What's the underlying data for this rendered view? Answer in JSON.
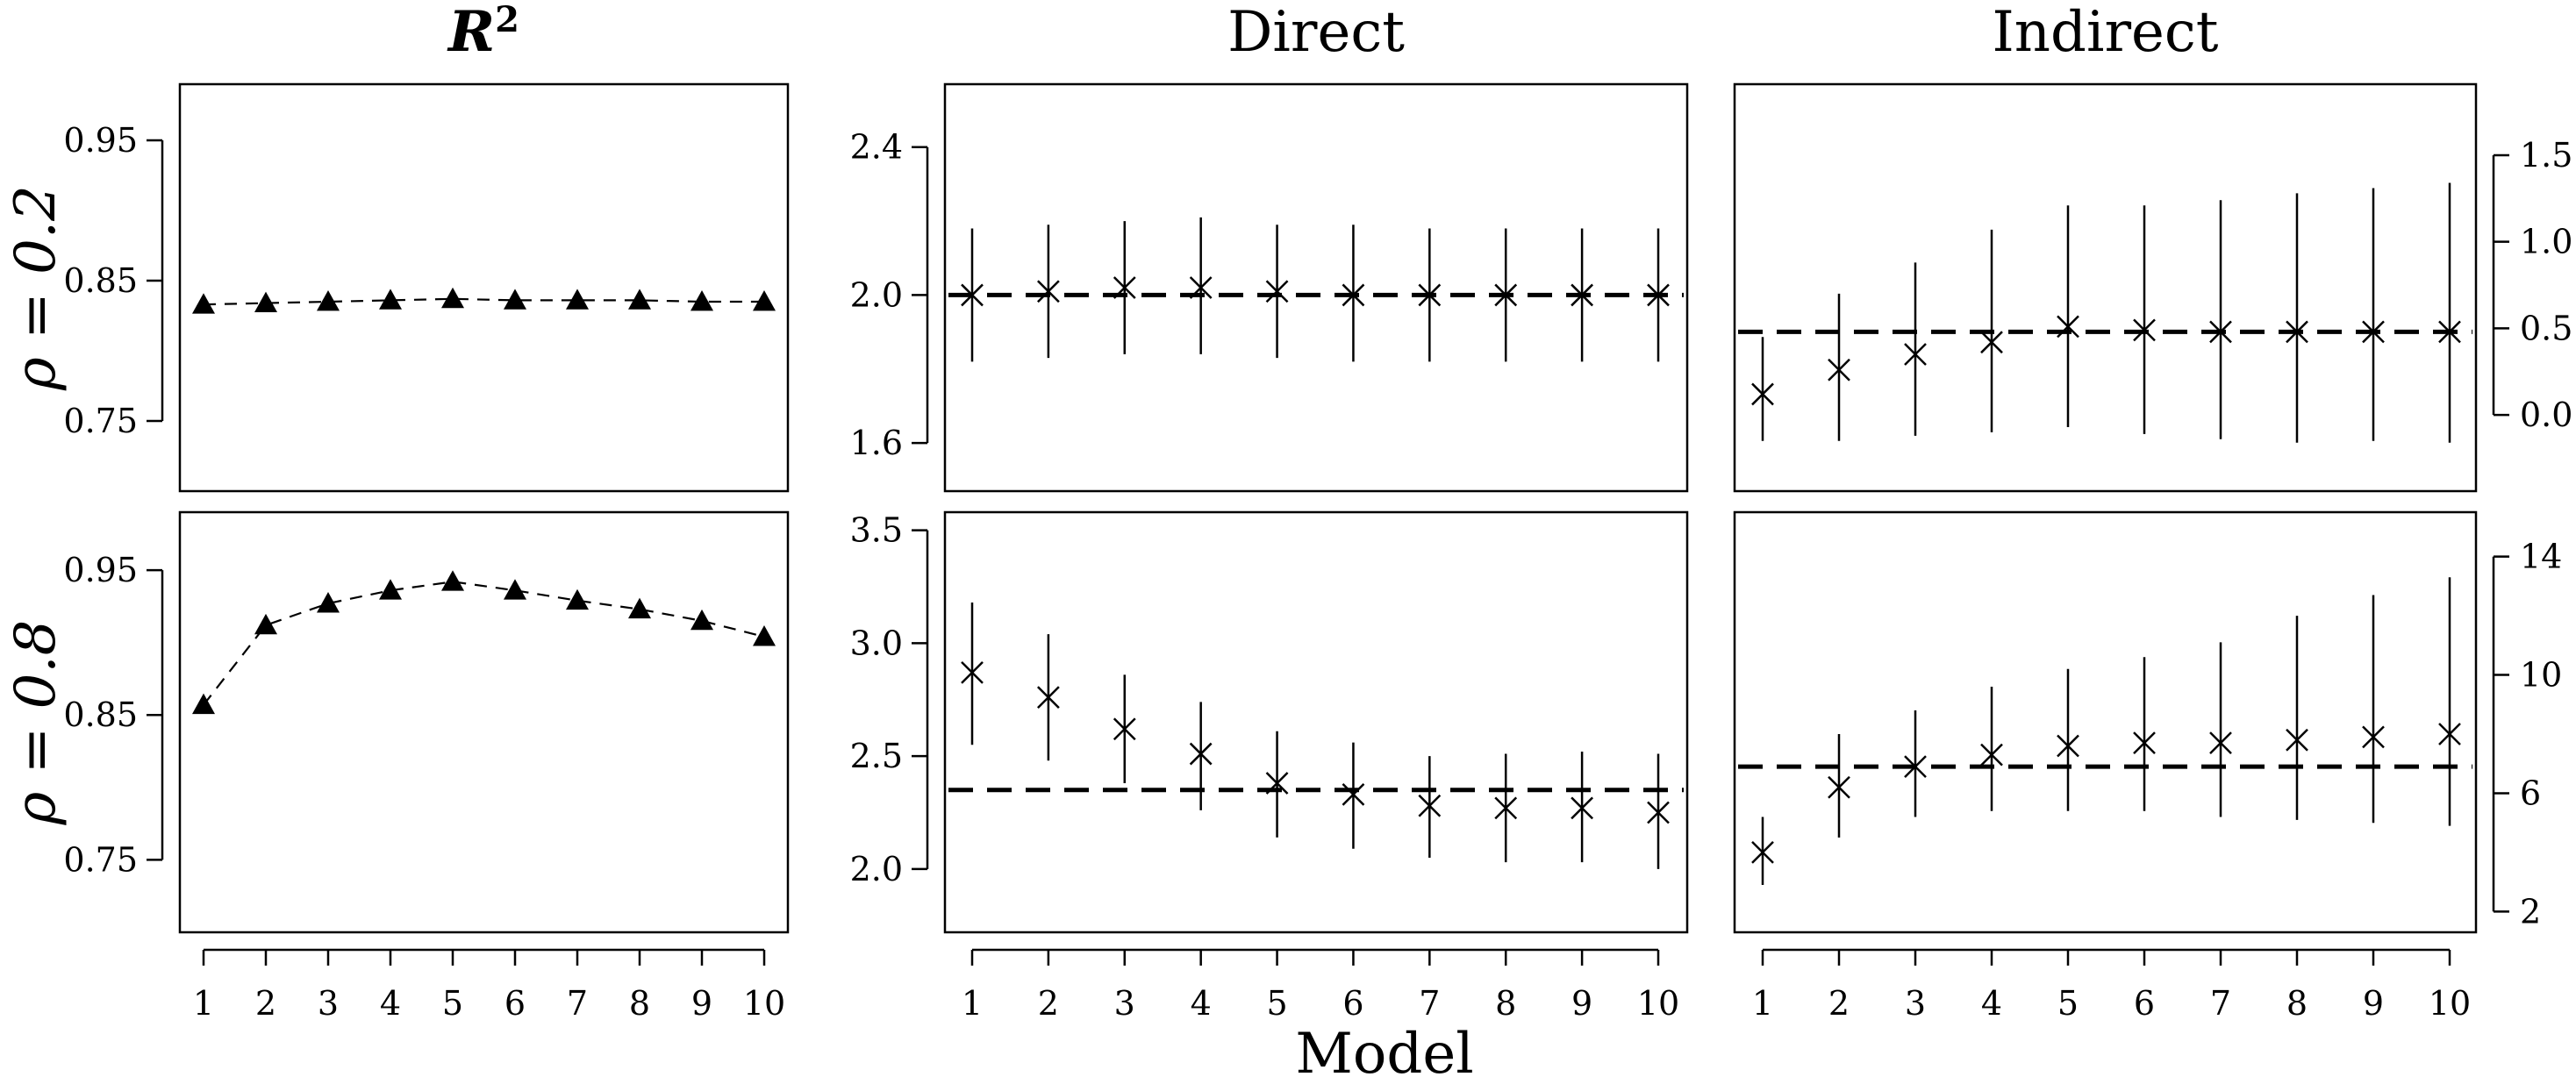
{
  "chart_data": {
    "type": "scatter",
    "x_title": "Model",
    "x_ticks": [
      "1",
      "2",
      "3",
      "4",
      "5",
      "6",
      "7",
      "8",
      "9",
      "10"
    ],
    "columns": [
      {
        "title": "R",
        "title_sup": "2"
      },
      {
        "title": "Direct"
      },
      {
        "title": "Indirect"
      }
    ],
    "rows": [
      {
        "label": "ρ = 0.2"
      },
      {
        "label": "ρ = 0.8"
      }
    ],
    "panels": [
      {
        "id": "r2-rho02",
        "row": 0,
        "col": 0,
        "kind": "r2",
        "ylim": [
          0.7,
          0.99
        ],
        "yticks": [
          0.75,
          0.85,
          0.95
        ],
        "ytick_labels": [
          "0.75",
          "0.85",
          "0.95"
        ],
        "y_axis_side": "left",
        "values": [
          0.833,
          0.834,
          0.835,
          0.836,
          0.837,
          0.836,
          0.836,
          0.836,
          0.835,
          0.835
        ]
      },
      {
        "id": "direct-rho02",
        "row": 0,
        "col": 1,
        "kind": "ci",
        "ylim": [
          1.47,
          2.57
        ],
        "yticks": [
          1.6,
          2.0,
          2.4
        ],
        "ytick_labels": [
          "1.6",
          "2.0",
          "2.4"
        ],
        "y_axis_side": "left",
        "reference": 2.0,
        "estimates": [
          2.0,
          2.01,
          2.02,
          2.02,
          2.01,
          2.0,
          2.0,
          2.0,
          2.0,
          2.0
        ],
        "lower": [
          1.82,
          1.83,
          1.84,
          1.84,
          1.83,
          1.82,
          1.82,
          1.82,
          1.82,
          1.82
        ],
        "upper": [
          2.18,
          2.19,
          2.2,
          2.21,
          2.19,
          2.19,
          2.18,
          2.18,
          2.18,
          2.18
        ]
      },
      {
        "id": "indirect-rho02",
        "row": 0,
        "col": 2,
        "kind": "ci",
        "ylim": [
          -0.44,
          1.91
        ],
        "yticks": [
          0.0,
          0.5,
          1.0,
          1.5
        ],
        "ytick_labels": [
          "0.0",
          "0.5",
          "1.0",
          "1.5"
        ],
        "y_axis_side": "right",
        "reference": 0.48,
        "estimates": [
          0.12,
          0.26,
          0.35,
          0.42,
          0.51,
          0.49,
          0.48,
          0.48,
          0.48,
          0.48
        ],
        "lower": [
          -0.15,
          -0.15,
          -0.12,
          -0.1,
          -0.07,
          -0.11,
          -0.14,
          -0.16,
          -0.15,
          -0.16
        ],
        "upper": [
          0.45,
          0.7,
          0.88,
          1.07,
          1.21,
          1.21,
          1.24,
          1.28,
          1.31,
          1.34
        ]
      },
      {
        "id": "r2-rho08",
        "row": 1,
        "col": 0,
        "kind": "r2",
        "ylim": [
          0.7,
          0.99
        ],
        "yticks": [
          0.75,
          0.85,
          0.95
        ],
        "ytick_labels": [
          "0.75",
          "0.85",
          "0.95"
        ],
        "y_axis_side": "left",
        "values": [
          0.857,
          0.912,
          0.927,
          0.936,
          0.942,
          0.936,
          0.929,
          0.923,
          0.915,
          0.904
        ]
      },
      {
        "id": "direct-rho08",
        "row": 1,
        "col": 1,
        "kind": "ci",
        "ylim": [
          1.72,
          3.58
        ],
        "yticks": [
          2.0,
          2.5,
          3.0,
          3.5
        ],
        "ytick_labels": [
          "2.0",
          "2.5",
          "3.0",
          "3.5"
        ],
        "y_axis_side": "left",
        "reference": 2.35,
        "estimates": [
          2.87,
          2.76,
          2.62,
          2.51,
          2.38,
          2.33,
          2.28,
          2.27,
          2.27,
          2.25
        ],
        "lower": [
          2.55,
          2.48,
          2.38,
          2.26,
          2.14,
          2.09,
          2.05,
          2.03,
          2.03,
          2.0
        ],
        "upper": [
          3.18,
          3.04,
          2.86,
          2.74,
          2.61,
          2.56,
          2.5,
          2.51,
          2.52,
          2.51
        ]
      },
      {
        "id": "indirect-rho08",
        "row": 1,
        "col": 2,
        "kind": "ci",
        "ylim": [
          1.3,
          15.5
        ],
        "yticks": [
          2,
          6,
          10,
          14
        ],
        "ytick_labels": [
          "2",
          "6",
          "10",
          "14"
        ],
        "y_axis_side": "right",
        "reference": 6.9,
        "estimates": [
          4.0,
          6.2,
          6.9,
          7.3,
          7.6,
          7.7,
          7.7,
          7.8,
          7.9,
          8.0
        ],
        "lower": [
          2.9,
          4.5,
          5.2,
          5.4,
          5.4,
          5.4,
          5.2,
          5.1,
          5.0,
          4.9
        ],
        "upper": [
          5.2,
          8.0,
          8.8,
          9.6,
          10.2,
          10.6,
          11.1,
          12.0,
          12.7,
          13.3
        ]
      }
    ]
  }
}
